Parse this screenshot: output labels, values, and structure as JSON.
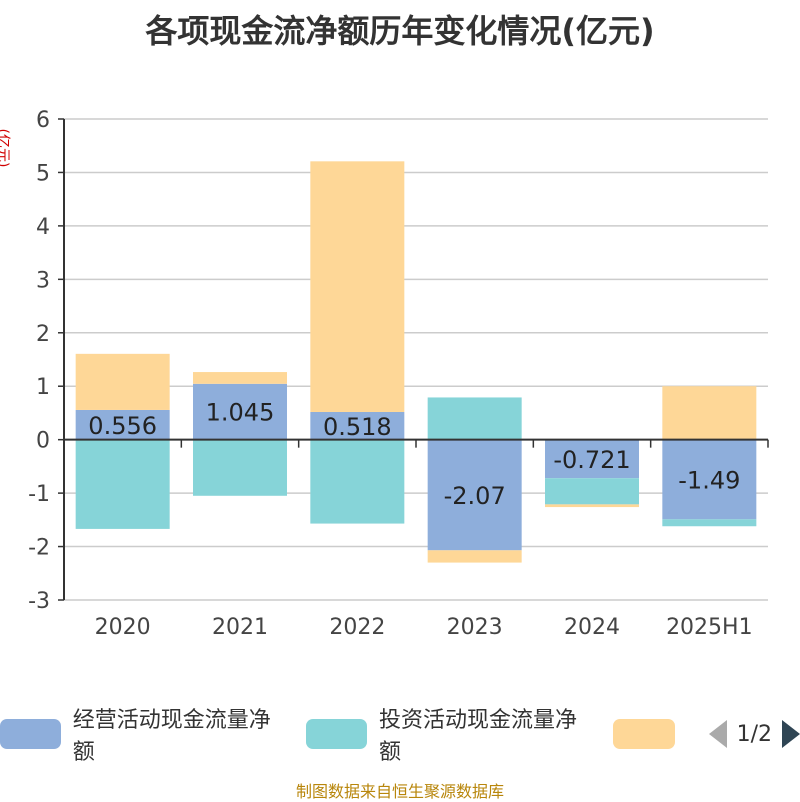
{
  "title": "各项现金流净额历年变化情况(亿元)",
  "y_unit": "(亿元)",
  "source": "制图数据来自恒生聚源数据库",
  "pager": "1/2",
  "chart_data": {
    "type": "bar",
    "stacked": true,
    "categories": [
      "2020",
      "2021",
      "2022",
      "2023",
      "2024",
      "2025H1"
    ],
    "ylim": [
      -3,
      6
    ],
    "yticks": [
      6,
      5,
      4,
      3,
      2,
      1,
      0,
      -1,
      -2,
      -3
    ],
    "grid": true,
    "legend_position": "bottom",
    "series": [
      {
        "name": "经营活动现金流量净额",
        "color": "#8eaedb",
        "values": [
          0.556,
          1.045,
          0.518,
          -2.07,
          -0.721,
          -1.49
        ],
        "labels": [
          "0.556",
          "1.045",
          "0.518",
          "-2.07",
          "-0.721",
          "-1.49"
        ]
      },
      {
        "name": "投资活动现金流量净额",
        "color": "#86d4d8",
        "values": [
          -1.67,
          -1.05,
          -1.57,
          0.79,
          -0.49,
          -0.13
        ]
      },
      {
        "name": "",
        "color": "#fed797",
        "values": [
          1.05,
          0.22,
          4.69,
          -0.23,
          -0.05,
          1.0
        ]
      }
    ]
  }
}
